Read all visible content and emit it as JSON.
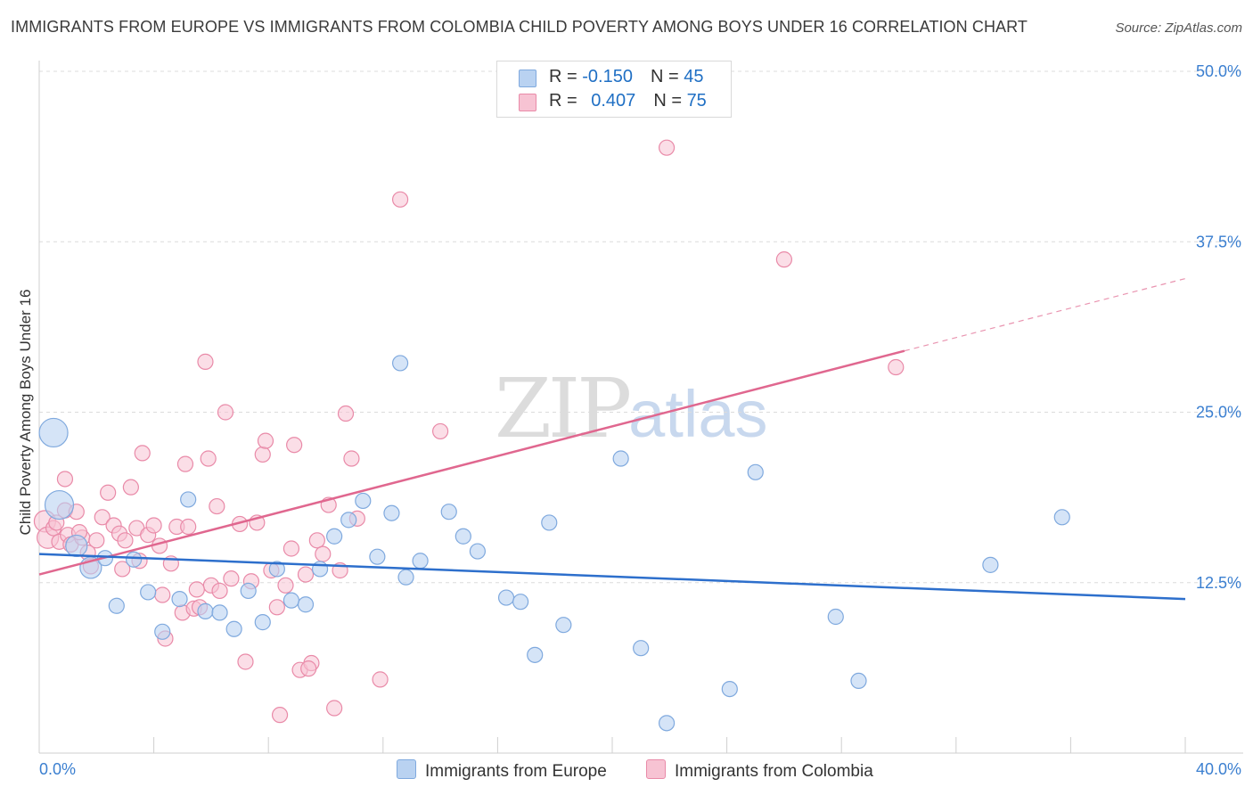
{
  "title": "IMMIGRANTS FROM EUROPE VS IMMIGRANTS FROM COLOMBIA CHILD POVERTY AMONG BOYS UNDER 16 CORRELATION CHART",
  "source": "Source: ZipAtlas.com",
  "legend": {
    "europe": {
      "r_label": "R = ",
      "r_value": "-0.150",
      "n_label": "N = ",
      "n_value": "45"
    },
    "colombia": {
      "r_label": "R = ",
      "r_value": "0.407",
      "n_label": "N = ",
      "n_value": "75"
    }
  },
  "watermark": {
    "zip": "ZIP",
    "atlas": "atlas"
  },
  "chart_data": {
    "type": "scatter",
    "ylabel": "Child Poverty Among Boys Under 16",
    "xlim": [
      0,
      40
    ],
    "ylim": [
      0,
      50
    ],
    "x_tick_labels": [
      "0.0%",
      "40.0%"
    ],
    "y_ticks": [
      12.5,
      25.0,
      37.5,
      50.0
    ],
    "y_tick_labels": [
      "12.5%",
      "25.0%",
      "37.5%",
      "50.0%"
    ],
    "grid": true,
    "colors": {
      "europe_fill": "#b9d2f1",
      "europe_stroke": "#7fa9de",
      "europe_line": "#2d6fcc",
      "colombia_fill": "#f7c3d3",
      "colombia_stroke": "#e98aa8",
      "colombia_line": "#e0678f",
      "tick_label": "#3b7fd0"
    },
    "series": [
      {
        "name": "Immigrants from Europe",
        "trend": {
          "x": [
            0,
            40
          ],
          "y": [
            14.6,
            11.3
          ]
        },
        "points": [
          [
            0.5,
            23.5,
            3
          ],
          [
            0.7,
            18.2,
            3
          ],
          [
            1.3,
            15.2,
            2
          ],
          [
            1.8,
            13.6,
            2
          ],
          [
            2.3,
            14.3,
            1
          ],
          [
            2.7,
            10.8,
            1
          ],
          [
            3.3,
            14.2,
            1
          ],
          [
            3.8,
            11.8,
            1
          ],
          [
            4.3,
            8.9,
            1
          ],
          [
            4.9,
            11.3,
            1
          ],
          [
            5.2,
            18.6,
            1
          ],
          [
            5.8,
            10.4,
            1
          ],
          [
            6.3,
            10.3,
            1
          ],
          [
            6.8,
            9.1,
            1
          ],
          [
            7.3,
            11.9,
            1
          ],
          [
            7.8,
            9.6,
            1
          ],
          [
            8.3,
            13.5,
            1
          ],
          [
            8.8,
            11.2,
            1
          ],
          [
            9.3,
            10.9,
            1
          ],
          [
            9.8,
            13.5,
            1
          ],
          [
            10.3,
            15.9,
            1
          ],
          [
            10.8,
            17.1,
            1
          ],
          [
            11.3,
            18.5,
            1
          ],
          [
            11.8,
            14.4,
            1
          ],
          [
            12.3,
            17.6,
            1
          ],
          [
            12.8,
            12.9,
            1
          ],
          [
            13.3,
            14.1,
            1
          ],
          [
            12.6,
            28.6,
            1
          ],
          [
            14.3,
            17.7,
            1
          ],
          [
            14.8,
            15.9,
            1
          ],
          [
            15.3,
            14.8,
            1
          ],
          [
            16.3,
            11.4,
            1
          ],
          [
            16.8,
            11.1,
            1
          ],
          [
            17.3,
            7.2,
            1
          ],
          [
            17.8,
            16.9,
            1
          ],
          [
            18.3,
            9.4,
            1
          ],
          [
            20.3,
            21.6,
            1
          ],
          [
            21.0,
            7.7,
            1
          ],
          [
            21.9,
            2.2,
            1
          ],
          [
            24.1,
            4.7,
            1
          ],
          [
            25.0,
            20.6,
            1
          ],
          [
            27.8,
            10.0,
            1
          ],
          [
            28.6,
            5.3,
            1
          ],
          [
            33.2,
            13.8,
            1
          ],
          [
            35.7,
            17.3,
            1
          ]
        ]
      },
      {
        "name": "Immigrants from Colombia",
        "trend": {
          "x": [
            0,
            30.2
          ],
          "y": [
            13.1,
            29.5
          ]
        },
        "trend_dashed": {
          "x": [
            30.2,
            40
          ],
          "y": [
            29.5,
            34.8
          ]
        },
        "points": [
          [
            0.2,
            17.0,
            2
          ],
          [
            0.3,
            15.8,
            2
          ],
          [
            0.5,
            16.5,
            1
          ],
          [
            0.7,
            15.5,
            1
          ],
          [
            0.9,
            17.8,
            1
          ],
          [
            0.9,
            20.1,
            1
          ],
          [
            1.0,
            16.0,
            1
          ],
          [
            1.1,
            15.3,
            1
          ],
          [
            1.3,
            17.7,
            1
          ],
          [
            1.5,
            15.8,
            1
          ],
          [
            1.7,
            14.7,
            1
          ],
          [
            1.8,
            13.7,
            1
          ],
          [
            2.0,
            15.6,
            1
          ],
          [
            2.2,
            17.3,
            1
          ],
          [
            2.4,
            19.1,
            1
          ],
          [
            2.6,
            16.7,
            1
          ],
          [
            2.8,
            16.1,
            1
          ],
          [
            3.0,
            15.6,
            1
          ],
          [
            3.2,
            19.5,
            1
          ],
          [
            3.4,
            16.5,
            1
          ],
          [
            3.5,
            14.1,
            1
          ],
          [
            3.6,
            22.0,
            1
          ],
          [
            3.8,
            16.0,
            1
          ],
          [
            4.0,
            16.7,
            1
          ],
          [
            4.2,
            15.2,
            1
          ],
          [
            4.3,
            11.6,
            1
          ],
          [
            4.4,
            8.4,
            1
          ],
          [
            4.6,
            13.9,
            1
          ],
          [
            4.8,
            16.6,
            1
          ],
          [
            5.0,
            10.3,
            1
          ],
          [
            5.1,
            21.2,
            1
          ],
          [
            5.2,
            16.6,
            1
          ],
          [
            5.4,
            10.6,
            1
          ],
          [
            5.6,
            10.7,
            1
          ],
          [
            5.8,
            28.7,
            1
          ],
          [
            5.9,
            21.6,
            1
          ],
          [
            6.0,
            12.3,
            1
          ],
          [
            6.2,
            18.1,
            1
          ],
          [
            6.3,
            11.9,
            1
          ],
          [
            6.5,
            25.0,
            1
          ],
          [
            6.7,
            12.8,
            1
          ],
          [
            7.0,
            16.8,
            1
          ],
          [
            7.2,
            6.7,
            1
          ],
          [
            7.4,
            12.6,
            1
          ],
          [
            7.6,
            16.9,
            1
          ],
          [
            7.8,
            21.9,
            1
          ],
          [
            7.9,
            22.9,
            1
          ],
          [
            8.1,
            13.4,
            1
          ],
          [
            8.3,
            10.7,
            1
          ],
          [
            8.4,
            2.8,
            1
          ],
          [
            8.6,
            12.3,
            1
          ],
          [
            8.8,
            15.0,
            1
          ],
          [
            8.9,
            22.6,
            1
          ],
          [
            9.1,
            6.1,
            1
          ],
          [
            9.3,
            13.1,
            1
          ],
          [
            9.5,
            6.6,
            1
          ],
          [
            9.7,
            15.6,
            1
          ],
          [
            9.9,
            14.6,
            1
          ],
          [
            10.1,
            18.2,
            1
          ],
          [
            10.3,
            3.3,
            1
          ],
          [
            10.5,
            13.4,
            1
          ],
          [
            10.7,
            24.9,
            1
          ],
          [
            10.9,
            21.6,
            1
          ],
          [
            11.1,
            17.2,
            1
          ],
          [
            11.9,
            5.4,
            1
          ],
          [
            12.6,
            40.6,
            1
          ],
          [
            14.0,
            23.6,
            1
          ],
          [
            21.9,
            44.4,
            1
          ],
          [
            26.0,
            36.2,
            1
          ],
          [
            29.9,
            28.3,
            1
          ],
          [
            9.4,
            6.2,
            1
          ],
          [
            2.9,
            13.5,
            1
          ],
          [
            5.5,
            12.0,
            1
          ],
          [
            1.4,
            16.2,
            1
          ],
          [
            0.6,
            16.9,
            1
          ]
        ]
      }
    ]
  },
  "bottom_legend": {
    "europe": "Immigrants from Europe",
    "colombia": "Immigrants from Colombia"
  }
}
